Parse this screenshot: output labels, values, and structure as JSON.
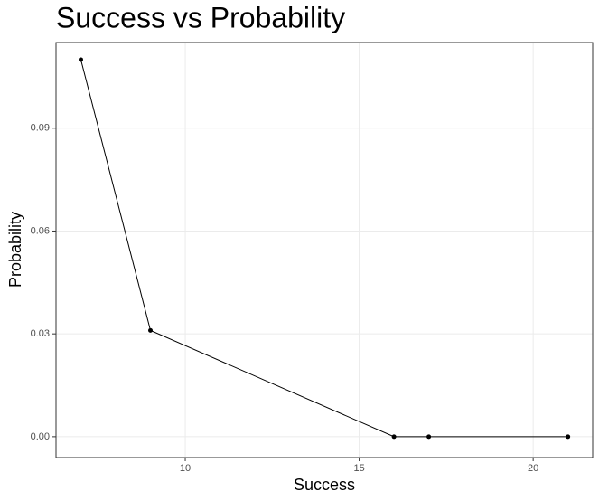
{
  "chart_data": {
    "type": "line",
    "title": "Success vs Probability",
    "x_label": "Success",
    "y_label": "Probability",
    "x": [
      7,
      9,
      16,
      17,
      21
    ],
    "series": [
      {
        "name": "Probability",
        "color": "#000000",
        "values": [
          0.11,
          0.031,
          0,
          0,
          0
        ]
      }
    ],
    "xlim": [
      6.286,
      21.71
    ],
    "xticks": [
      10,
      15,
      20
    ],
    "ylim": [
      -0.0061,
      0.115
    ],
    "yticks": [
      {
        "value": 0,
        "label": "0.00"
      },
      {
        "value": 0.03,
        "label": "0.03"
      },
      {
        "value": 0.06,
        "label": "0.06"
      },
      {
        "value": 0.09,
        "label": "0.09"
      }
    ],
    "grid": true,
    "markers": true
  }
}
